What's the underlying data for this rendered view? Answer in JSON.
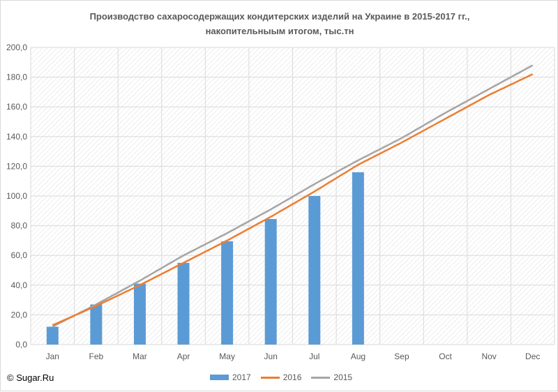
{
  "chart_data": {
    "type": "bar",
    "title_line1": "Производство сахаросодержащих кондитерских изделий на Украине в 2015-2017 гг.,",
    "title_line2": "накопительныым итогом, тыс.тн",
    "categories": [
      "Jan",
      "Feb",
      "Mar",
      "Apr",
      "May",
      "Jun",
      "Jul",
      "Aug",
      "Sep",
      "Oct",
      "Nov",
      "Dec"
    ],
    "ylim": [
      0,
      200
    ],
    "yticks": [
      "0,0",
      "20,0",
      "40,0",
      "60,0",
      "80,0",
      "100,0",
      "120,0",
      "140,0",
      "160,0",
      "180,0",
      "200,0"
    ],
    "grid": true,
    "legend_position": "bottom",
    "series": [
      {
        "name": "2017",
        "kind": "bar",
        "color": "#5b9bd5",
        "values": [
          12,
          27,
          41,
          55,
          69.5,
          84.5,
          100,
          116,
          null,
          null,
          null,
          null
        ]
      },
      {
        "name": "2016",
        "kind": "line",
        "color": "#ed7d31",
        "values": [
          13,
          26,
          40,
          55,
          70,
          86,
          103,
          121,
          136,
          152,
          168,
          182
        ]
      },
      {
        "name": "2015",
        "kind": "line",
        "color": "#a5a5a5",
        "values": [
          12,
          27,
          43,
          60,
          75,
          91,
          108,
          124,
          139,
          156,
          172,
          188
        ]
      }
    ]
  },
  "copyright": "© Sugar.Ru"
}
